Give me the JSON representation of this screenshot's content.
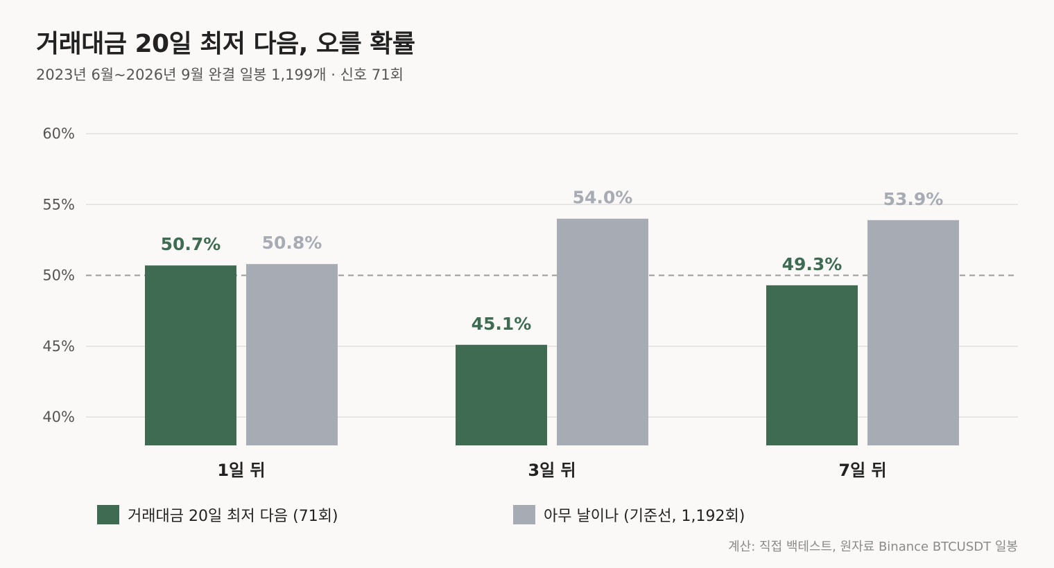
{
  "title": "거래대금 20일 최저 다음, 오를 확률",
  "subtitle": "2023년 6월~2026년 9월 완결 일봉 1,199개 · 신호 71회",
  "source": "계산: 직접 백테스트, 원자료 Binance BTCUSDT 일봉",
  "colors": {
    "signal": "#3e6b52",
    "baseline": "#a7abb3",
    "reference_line": "#9a9a9a",
    "grid": "#e2e0dc",
    "axis_text": "#555555"
  },
  "chart_data": {
    "type": "bar",
    "categories": [
      "1일 뒤",
      "3일 뒤",
      "7일 뒤"
    ],
    "series": [
      {
        "name": "거래대금 20일 최저 다음 (71회)",
        "values": [
          50.7,
          45.1,
          49.3
        ],
        "labels": [
          "50.7%",
          "45.1%",
          "49.3%"
        ],
        "color": "#3e6b52"
      },
      {
        "name": "아무 날이나 (기준선, 1,192회)",
        "values": [
          50.8,
          54.0,
          53.9
        ],
        "labels": [
          "50.8%",
          "54.0%",
          "53.9%"
        ],
        "color": "#a7abb3"
      }
    ],
    "yticks": [
      40,
      45,
      50,
      55,
      60
    ],
    "ytick_labels": [
      "40%",
      "45%",
      "50%",
      "55%",
      "60%"
    ],
    "ylim": [
      38,
      60
    ],
    "reference_line": 50,
    "grid": true,
    "legend_position": "bottom"
  }
}
